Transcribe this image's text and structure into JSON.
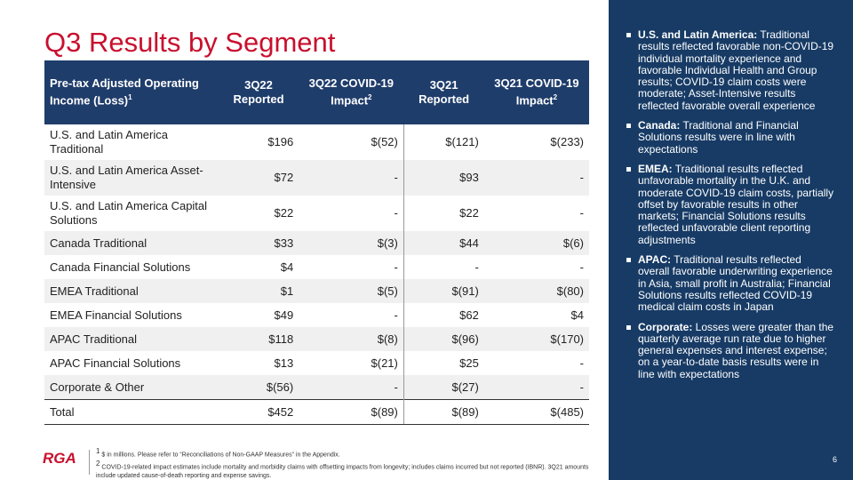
{
  "title": "Q3 Results by Segment",
  "table": {
    "header": [
      {
        "text": "Pre-tax Adjusted Operating Income (Loss)",
        "sup": "1"
      },
      {
        "text": "3Q22 Reported"
      },
      {
        "text": "3Q22 COVID-19 Impact",
        "sup": "2"
      },
      {
        "text": "3Q21 Reported"
      },
      {
        "text": "3Q21 COVID-19 Impact",
        "sup": "2"
      }
    ],
    "rows": [
      [
        "U.S. and Latin America Traditional",
        "$196",
        "$(52)",
        "$(121)",
        "$(233)"
      ],
      [
        "U.S. and Latin America Asset-Intensive",
        "$72",
        "-",
        "$93",
        "-"
      ],
      [
        "U.S. and Latin America Capital Solutions",
        "$22",
        "-",
        "$22",
        "-"
      ],
      [
        "Canada Traditional",
        "$33",
        "$(3)",
        "$44",
        "$(6)"
      ],
      [
        "Canada Financial Solutions",
        "$4",
        "-",
        "-",
        "-"
      ],
      [
        "EMEA Traditional",
        "$1",
        "$(5)",
        "$(91)",
        "$(80)"
      ],
      [
        "EMEA Financial Solutions",
        "$49",
        "-",
        "$62",
        "$4"
      ],
      [
        "APAC Traditional",
        "$118",
        "$(8)",
        "$(96)",
        "$(170)"
      ],
      [
        "APAC Financial Solutions",
        "$13",
        "$(21)",
        "$25",
        "-"
      ],
      [
        "Corporate & Other",
        "$(56)",
        "-",
        "$(27)",
        "-"
      ],
      [
        "Total",
        "$452",
        "$(89)",
        "$(89)",
        "$(485)"
      ]
    ]
  },
  "bullets": [
    {
      "lead": "U.S. and Latin America:",
      "text": " Traditional results reflected favorable non-COVID-19 individual mortality experience and favorable Individual Health and Group results; COVID-19 claim costs were moderate; Asset-Intensive results reflected favorable overall experience"
    },
    {
      "lead": "Canada:",
      "text": " Traditional and Financial Solutions results were in line with expectations"
    },
    {
      "lead": "EMEA:",
      "text": " Traditional results reflected unfavorable mortality in the U.K. and moderate COVID-19 claim costs, partially offset by favorable results in other markets; Financial Solutions results reflected unfavorable client reporting adjustments"
    },
    {
      "lead": "APAC:",
      "text": " Traditional results reflected overall favorable underwriting experience in Asia, small profit in Australia; Financial Solutions results reflected COVID-19 medical claim costs in Japan"
    },
    {
      "lead": "Corporate:",
      "text": " Losses were greater than the quarterly average run rate due to higher general expenses and interest expense; on a year-to-date basis results were in line with expectations"
    }
  ],
  "footnotes": [
    {
      "sup": "1",
      "text": " $ in millions. Please refer to “Reconciliations of Non-GAAP Measures” in the Appendix."
    },
    {
      "sup": "2",
      "text": " COVID-19-related impact estimates include mortality and morbidity claims with offsetting impacts from longevity; includes claims incurred but not reported (IBNR). 3Q21 amounts include updated cause-of-death reporting and expense savings."
    }
  ],
  "logo": "RGA",
  "page_number": "6"
}
